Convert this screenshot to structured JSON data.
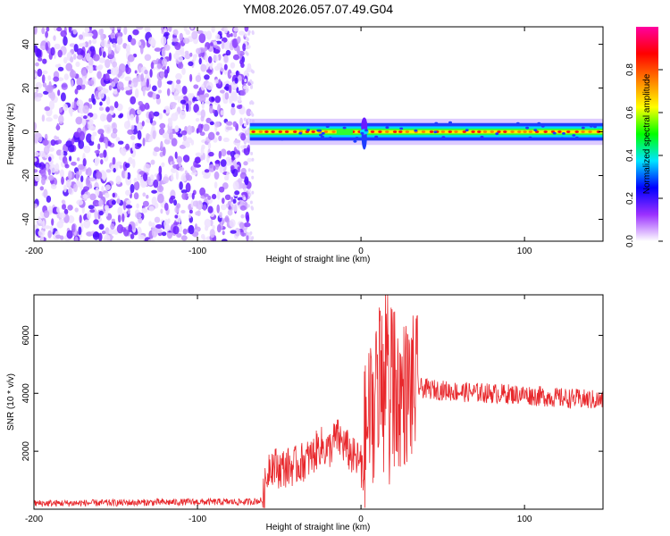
{
  "title": "YM08.2026.057.07.49.G04",
  "chart_data": [
    {
      "type": "heatmap",
      "xlabel": "Height of straight line (km)",
      "ylabel": "Frequency (Hz)",
      "xlim": [
        -200,
        148
      ],
      "ylim": [
        -50,
        48
      ],
      "x_ticks": [
        -200,
        -100,
        0,
        100
      ],
      "y_ticks": [
        -40,
        -20,
        0,
        20,
        40
      ],
      "noise_region_x": [
        -200,
        -68
      ],
      "signal_band_x": [
        -68,
        148
      ],
      "signal_center_hz": 0,
      "signal_halfwidth_hz": 2.5,
      "colorbar": {
        "label": "Normalized spectral amplitude",
        "range": [
          0,
          1
        ],
        "ticks": [
          0.0,
          0.2,
          0.4,
          0.6,
          0.8
        ],
        "colormap": [
          "#ffffff",
          "#9b30ff",
          "#0000ff",
          "#00e5ff",
          "#00ff00",
          "#ffff00",
          "#ff8000",
          "#ff0000",
          "#ff00a0"
        ]
      }
    },
    {
      "type": "line",
      "xlabel": "Height of straight line (km)",
      "ylabel": "SNR (10 * v/v)",
      "xlim": [
        -200,
        148
      ],
      "ylim": [
        0,
        7400
      ],
      "x_ticks": [
        -200,
        -100,
        0,
        100
      ],
      "y_ticks": [
        2000,
        4000,
        6000
      ],
      "series": [
        {
          "name": "SNR",
          "color": "#e8282c",
          "x": [
            -200,
            -150,
            -100,
            -70,
            -60,
            -56,
            -50,
            -40,
            -30,
            -25,
            -20,
            -15,
            -10,
            -5,
            0,
            5,
            8,
            10,
            12,
            15,
            18,
            20,
            25,
            30,
            35,
            40,
            50,
            60,
            80,
            100,
            120,
            148
          ],
          "values": [
            200,
            220,
            250,
            250,
            300,
            1600,
            1400,
            1500,
            1800,
            2200,
            2000,
            2500,
            2200,
            1800,
            1600,
            3200,
            3600,
            4200,
            3800,
            5200,
            4000,
            3800,
            4000,
            4100,
            4200,
            4150,
            4100,
            4050,
            4000,
            3950,
            3850,
            3750
          ]
        }
      ]
    }
  ]
}
